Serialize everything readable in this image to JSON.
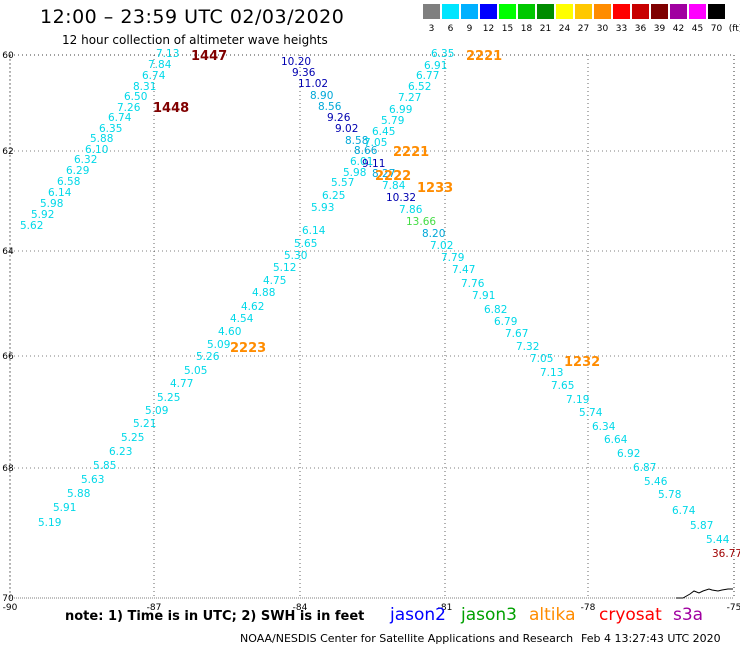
{
  "header": {
    "title": "12:00 – 23:59 UTC 02/03/2020",
    "subtitle": "12 hour collection of altimeter wave heights"
  },
  "legend": {
    "units": "(ft)",
    "swatches": [
      {
        "label": "3",
        "color": "#7f7f7f"
      },
      {
        "label": "6",
        "color": "#00e5ff"
      },
      {
        "label": "9",
        "color": "#00b0ff"
      },
      {
        "label": "12",
        "color": "#0000ff"
      },
      {
        "label": "15",
        "color": "#00ff00"
      },
      {
        "label": "18",
        "color": "#00c800"
      },
      {
        "label": "21",
        "color": "#008c00"
      },
      {
        "label": "24",
        "color": "#ffff00"
      },
      {
        "label": "27",
        "color": "#ffc800"
      },
      {
        "label": "30",
        "color": "#ff8c00"
      },
      {
        "label": "33",
        "color": "#ff0000"
      },
      {
        "label": "36",
        "color": "#c80000"
      },
      {
        "label": "39",
        "color": "#7f0000"
      },
      {
        "label": "42",
        "color": "#a000a0"
      },
      {
        "label": "45",
        "color": "#ff00ff"
      },
      {
        "label": "70",
        "color": "#000000"
      }
    ]
  },
  "map": {
    "lat_labels": [
      "60",
      "62",
      "64",
      "66",
      "68",
      "70"
    ],
    "lon_labels": [
      "-90",
      "-87",
      "-84",
      "-81",
      "-78",
      "-75"
    ]
  },
  "chart_data": {
    "type": "scatter",
    "units": "ft",
    "track_labels": [
      {
        "text": "1447",
        "color": "#800000"
      },
      {
        "text": "1448",
        "color": "#800000"
      },
      {
        "text": "2221",
        "color": "#ff8c00"
      },
      {
        "text": "2221",
        "color": "#ff8c00"
      },
      {
        "text": "2222",
        "color": "#ff8c00"
      },
      {
        "text": "1233",
        "color": "#ff8c00"
      },
      {
        "text": "2223",
        "color": "#ff8c00"
      },
      {
        "text": "1232",
        "color": "#ff8c00"
      }
    ],
    "points": [
      {
        "v": "7.13",
        "c": "#00d8e8"
      },
      {
        "v": "7.84",
        "c": "#00d8e8"
      },
      {
        "v": "6.74",
        "c": "#00d8e8"
      },
      {
        "v": "8.31",
        "c": "#00d8e8"
      },
      {
        "v": "6.50",
        "c": "#00d8e8"
      },
      {
        "v": "7.26",
        "c": "#00d8e8"
      },
      {
        "v": "6.74",
        "c": "#00d8e8"
      },
      {
        "v": "6.35",
        "c": "#00d8e8"
      },
      {
        "v": "5.88",
        "c": "#00d8e8"
      },
      {
        "v": "6.10",
        "c": "#00d8e8"
      },
      {
        "v": "6.32",
        "c": "#00d8e8"
      },
      {
        "v": "6.29",
        "c": "#00d8e8"
      },
      {
        "v": "6.58",
        "c": "#00d8e8"
      },
      {
        "v": "6.14",
        "c": "#00d8e8"
      },
      {
        "v": "5.98",
        "c": "#00d8e8"
      },
      {
        "v": "5.92",
        "c": "#00d8e8"
      },
      {
        "v": "5.62",
        "c": "#00d8e8"
      },
      {
        "v": "10.20",
        "c": "#0000b0"
      },
      {
        "v": "9.36",
        "c": "#0000b0"
      },
      {
        "v": "11.02",
        "c": "#0000b0"
      },
      {
        "v": "8.90",
        "c": "#00a8d8"
      },
      {
        "v": "8.56",
        "c": "#00a8d8"
      },
      {
        "v": "9.26",
        "c": "#0000b0"
      },
      {
        "v": "9.02",
        "c": "#0000b0"
      },
      {
        "v": "8.58",
        "c": "#00a8d8"
      },
      {
        "v": "8.66",
        "c": "#00a8d8"
      },
      {
        "v": "6.01",
        "c": "#00d8e8"
      },
      {
        "v": "9.11",
        "c": "#0000b0"
      },
      {
        "v": "8.27",
        "c": "#00a8d8"
      },
      {
        "v": "7.84",
        "c": "#00d8e8"
      },
      {
        "v": "10.32",
        "c": "#0000b0"
      },
      {
        "v": "7.86",
        "c": "#00d8e8"
      },
      {
        "v": "13.66",
        "c": "#44dd44"
      },
      {
        "v": "8.20",
        "c": "#00a8d8"
      },
      {
        "v": "7.02",
        "c": "#00d8e8"
      },
      {
        "v": "7.79",
        "c": "#00d8e8"
      },
      {
        "v": "7.47",
        "c": "#00d8e8"
      },
      {
        "v": "7.76",
        "c": "#00d8e8"
      },
      {
        "v": "7.91",
        "c": "#00d8e8"
      },
      {
        "v": "6.82",
        "c": "#00d8e8"
      },
      {
        "v": "6.79",
        "c": "#00d8e8"
      },
      {
        "v": "7.67",
        "c": "#00d8e8"
      },
      {
        "v": "7.32",
        "c": "#00d8e8"
      },
      {
        "v": "7.05",
        "c": "#00d8e8"
      },
      {
        "v": "7.13",
        "c": "#00d8e8"
      },
      {
        "v": "7.65",
        "c": "#00d8e8"
      },
      {
        "v": "7.19",
        "c": "#00d8e8"
      },
      {
        "v": "5.74",
        "c": "#00d8e8"
      },
      {
        "v": "6.34",
        "c": "#00d8e8"
      },
      {
        "v": "6.64",
        "c": "#00d8e8"
      },
      {
        "v": "6.92",
        "c": "#00d8e8"
      },
      {
        "v": "6.87",
        "c": "#00d8e8"
      },
      {
        "v": "5.46",
        "c": "#00d8e8"
      },
      {
        "v": "5.78",
        "c": "#00d8e8"
      },
      {
        "v": "6.74",
        "c": "#00d8e8"
      },
      {
        "v": "5.87",
        "c": "#00d8e8"
      },
      {
        "v": "5.44",
        "c": "#00d8e8"
      },
      {
        "v": "36.77",
        "c": "#a00000"
      },
      {
        "v": "6.35",
        "c": "#00d8e8"
      },
      {
        "v": "6.91",
        "c": "#00d8e8"
      },
      {
        "v": "6.77",
        "c": "#00d8e8"
      },
      {
        "v": "6.52",
        "c": "#00d8e8"
      },
      {
        "v": "7.27",
        "c": "#00d8e8"
      },
      {
        "v": "6.99",
        "c": "#00d8e8"
      },
      {
        "v": "5.79",
        "c": "#00d8e8"
      },
      {
        "v": "6.45",
        "c": "#00d8e8"
      },
      {
        "v": "7.05",
        "c": "#00d8e8"
      },
      {
        "v": "5.98",
        "c": "#00d8e8"
      },
      {
        "v": "5.57",
        "c": "#00d8e8"
      },
      {
        "v": "6.25",
        "c": "#00d8e8"
      },
      {
        "v": "5.93",
        "c": "#00d8e8"
      },
      {
        "v": "6.14",
        "c": "#00d8e8"
      },
      {
        "v": "5.65",
        "c": "#00d8e8"
      },
      {
        "v": "5.30",
        "c": "#00d8e8"
      },
      {
        "v": "5.12",
        "c": "#00d8e8"
      },
      {
        "v": "4.75",
        "c": "#00d8e8"
      },
      {
        "v": "4.88",
        "c": "#00d8e8"
      },
      {
        "v": "4.62",
        "c": "#00d8e8"
      },
      {
        "v": "4.54",
        "c": "#00d8e8"
      },
      {
        "v": "4.60",
        "c": "#00d8e8"
      },
      {
        "v": "5.09",
        "c": "#00d8e8"
      },
      {
        "v": "5.26",
        "c": "#00d8e8"
      },
      {
        "v": "5.05",
        "c": "#00d8e8"
      },
      {
        "v": "4.77",
        "c": "#00d8e8"
      },
      {
        "v": "5.25",
        "c": "#00d8e8"
      },
      {
        "v": "5.09",
        "c": "#00d8e8"
      },
      {
        "v": "5.21",
        "c": "#00d8e8"
      },
      {
        "v": "5.25",
        "c": "#00d8e8"
      },
      {
        "v": "6.23",
        "c": "#00d8e8"
      },
      {
        "v": "5.85",
        "c": "#00d8e8"
      },
      {
        "v": "5.63",
        "c": "#00d8e8"
      },
      {
        "v": "5.88",
        "c": "#00d8e8"
      },
      {
        "v": "5.91",
        "c": "#00d8e8"
      },
      {
        "v": "5.19",
        "c": "#00d8e8"
      }
    ]
  },
  "footer": {
    "note": "note: 1) Time is in UTC; 2) SWH is in feet",
    "satellites": [
      {
        "name": "jason2",
        "color": "#0000ff"
      },
      {
        "name": "jason3",
        "color": "#00a000"
      },
      {
        "name": "altika",
        "color": "#ff8c00"
      },
      {
        "name": "cryosat",
        "color": "#ff0000"
      },
      {
        "name": "s3a",
        "color": "#a000a0"
      }
    ],
    "credit": "NOAA/NESDIS Center for Satellite Applications and Research",
    "timestamp": "Feb  4 13:27:43 UTC 2020"
  }
}
